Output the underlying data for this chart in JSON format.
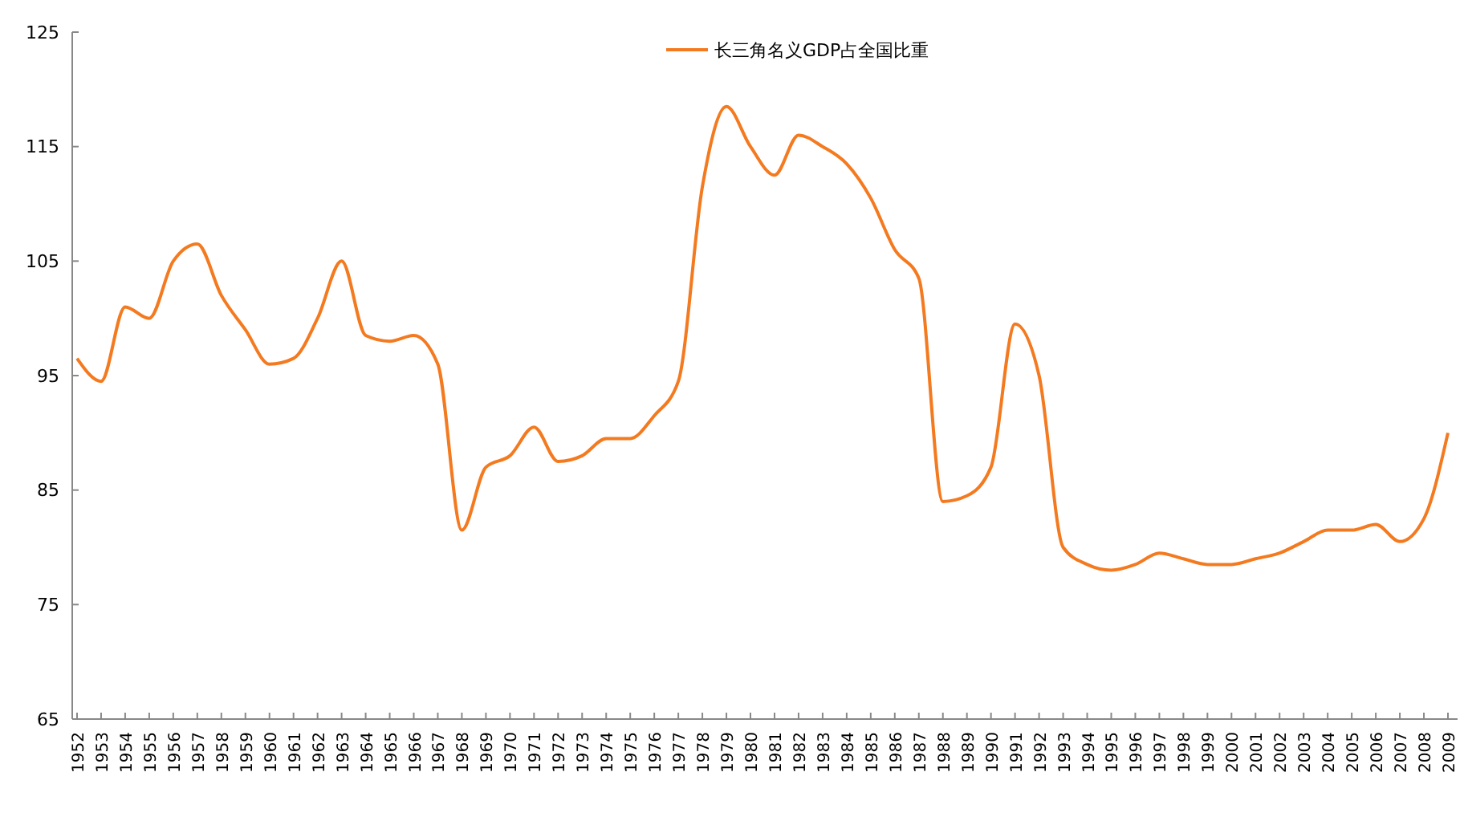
{
  "chart_data": {
    "type": "line",
    "categories": [
      "1952",
      "1953",
      "1954",
      "1955",
      "1956",
      "1957",
      "1958",
      "1959",
      "1960",
      "1961",
      "1962",
      "1963",
      "1964",
      "1965",
      "1966",
      "1967",
      "1968",
      "1969",
      "1970",
      "1971",
      "1972",
      "1973",
      "1974",
      "1975",
      "1976",
      "1977",
      "1978",
      "1979",
      "1980",
      "1981",
      "1982",
      "1983",
      "1984",
      "1985",
      "1986",
      "1987",
      "1988",
      "1989",
      "1990",
      "1991",
      "1992",
      "1993",
      "1994",
      "1995",
      "1996",
      "1997",
      "1998",
      "1999",
      "2000",
      "2001",
      "2002",
      "2003",
      "2004",
      "2005",
      "2006",
      "2007",
      "2008",
      "2009"
    ],
    "series": [
      {
        "name": "长三角名义GDP占全国比重",
        "color": "#f47a20",
        "values": [
          96.5,
          94.5,
          101,
          100,
          105,
          106.5,
          102,
          99,
          96,
          96.5,
          100,
          105,
          98.5,
          98,
          98.5,
          96,
          81.5,
          87,
          88,
          90.5,
          87.5,
          88,
          89.5,
          89.5,
          91.5,
          94.5,
          111.5,
          118.5,
          115,
          112.5,
          116,
          115,
          113.5,
          110.5,
          106,
          103.5,
          84,
          84.5,
          87,
          99.5,
          95,
          80,
          78.5,
          78,
          78.5,
          79.5,
          79,
          78.5,
          78.5,
          79,
          79.5,
          80.5,
          81.5,
          81.5,
          82,
          80.5,
          82.5,
          90
        ]
      }
    ],
    "ylim": [
      65,
      125
    ],
    "yticks": [
      65,
      75,
      85,
      95,
      105,
      115,
      125
    ],
    "grid": false,
    "legend": "top",
    "marker": "none",
    "line_style": "solid"
  }
}
